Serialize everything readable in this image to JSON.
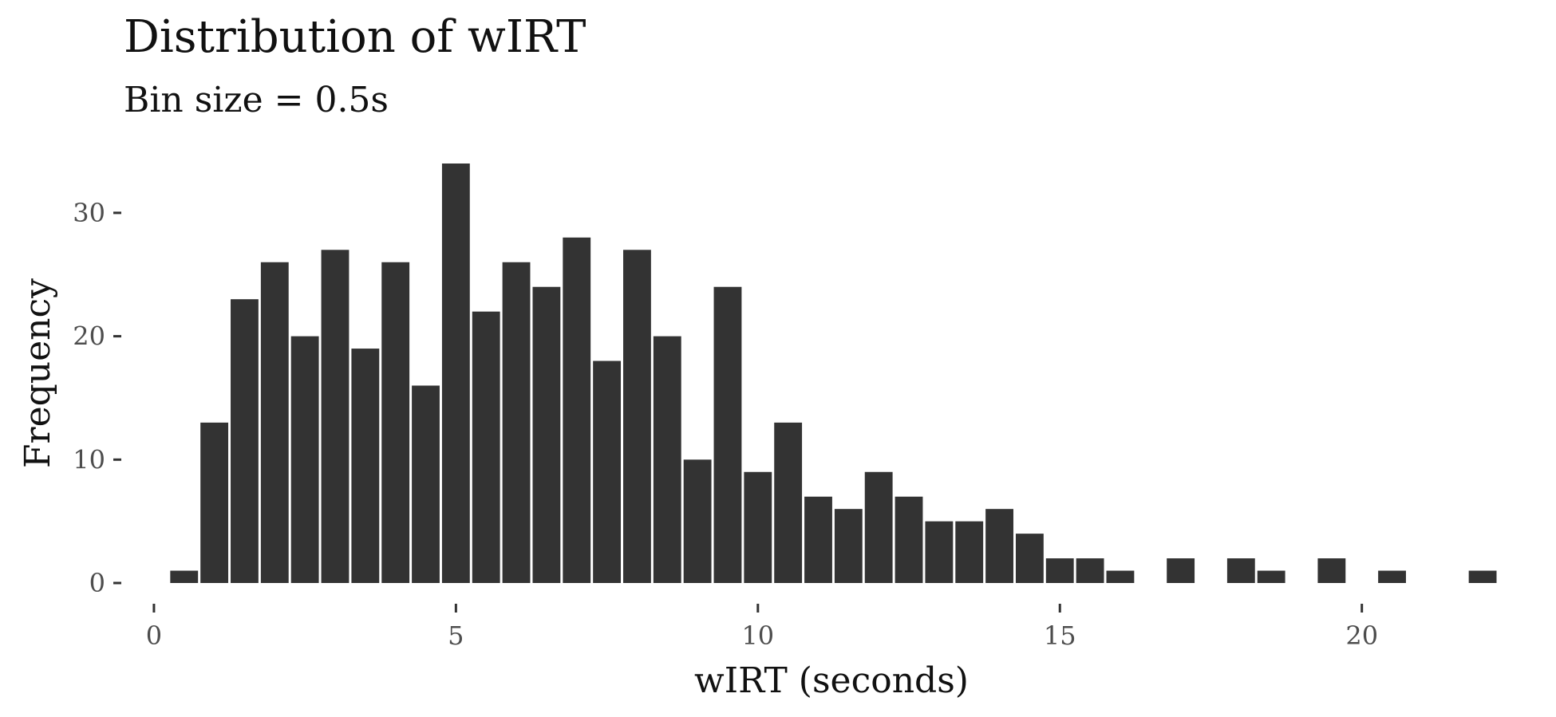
{
  "chart_data": {
    "type": "bar",
    "title": "Distribution of wIRT",
    "subtitle": "Bin size = 0.5s",
    "xlabel": "wIRT (seconds)",
    "ylabel": "Frequency",
    "bin_width": 0.5,
    "xlim": [
      -0.25,
      22.25
    ],
    "ylim": [
      0,
      34
    ],
    "xticks": [
      0,
      5,
      10,
      15,
      20
    ],
    "yticks": [
      0,
      10,
      20,
      30
    ],
    "grid": false,
    "bar_color": "#333333",
    "bins": [
      {
        "x": 0.5,
        "count": 1
      },
      {
        "x": 1.0,
        "count": 13
      },
      {
        "x": 1.5,
        "count": 23
      },
      {
        "x": 2.0,
        "count": 26
      },
      {
        "x": 2.5,
        "count": 20
      },
      {
        "x": 3.0,
        "count": 27
      },
      {
        "x": 3.5,
        "count": 19
      },
      {
        "x": 4.0,
        "count": 26
      },
      {
        "x": 4.5,
        "count": 16
      },
      {
        "x": 5.0,
        "count": 34
      },
      {
        "x": 5.5,
        "count": 22
      },
      {
        "x": 6.0,
        "count": 26
      },
      {
        "x": 6.5,
        "count": 24
      },
      {
        "x": 7.0,
        "count": 28
      },
      {
        "x": 7.5,
        "count": 18
      },
      {
        "x": 8.0,
        "count": 27
      },
      {
        "x": 8.5,
        "count": 20
      },
      {
        "x": 9.0,
        "count": 10
      },
      {
        "x": 9.5,
        "count": 24
      },
      {
        "x": 10.0,
        "count": 9
      },
      {
        "x": 10.5,
        "count": 13
      },
      {
        "x": 11.0,
        "count": 7
      },
      {
        "x": 11.5,
        "count": 6
      },
      {
        "x": 12.0,
        "count": 9
      },
      {
        "x": 12.5,
        "count": 7
      },
      {
        "x": 13.0,
        "count": 5
      },
      {
        "x": 13.5,
        "count": 5
      },
      {
        "x": 14.0,
        "count": 6
      },
      {
        "x": 14.5,
        "count": 4
      },
      {
        "x": 15.0,
        "count": 2
      },
      {
        "x": 15.5,
        "count": 2
      },
      {
        "x": 16.0,
        "count": 1
      },
      {
        "x": 17.0,
        "count": 2
      },
      {
        "x": 18.0,
        "count": 2
      },
      {
        "x": 18.5,
        "count": 1
      },
      {
        "x": 19.5,
        "count": 2
      },
      {
        "x": 20.5,
        "count": 1
      },
      {
        "x": 22.0,
        "count": 1
      }
    ]
  }
}
